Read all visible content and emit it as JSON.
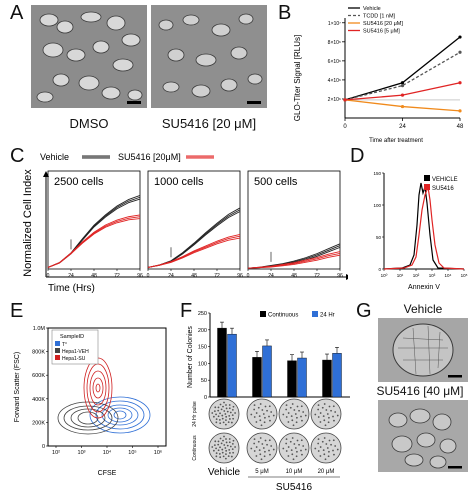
{
  "panels": {
    "A": {
      "letter": "A",
      "labels": [
        "DMSO",
        "SU5416 [20 μM]"
      ]
    },
    "B": {
      "letter": "B",
      "chart_data": {
        "type": "line",
        "ylabel": "GLO-Titer Signal [RLUs]",
        "xlabel": "Time after treatment",
        "x": [
          0,
          24,
          48
        ],
        "x_ticks": [
          "0",
          "24",
          "48"
        ],
        "y_ticks": [
          "2×10⁶",
          "4×10⁶",
          "6×10⁶",
          "8×10⁶",
          "1×10⁷"
        ],
        "y_tick_values": [
          2000000,
          4000000,
          6000000,
          8000000,
          10000000
        ],
        "ylim": [
          0,
          10500000
        ],
        "series": [
          {
            "name": "Vehicle",
            "color": "#000000",
            "dash": false,
            "values": [
              1900000,
              3700000,
              8500000
            ]
          },
          {
            "name": "TCDD [1 nM]",
            "color": "#555555",
            "dash": true,
            "values": [
              1900000,
              3400000,
              6900000
            ]
          },
          {
            "name": "SU5416 [20 μM]",
            "color": "#f08a1c",
            "dash": false,
            "values": [
              1900000,
              1200000,
              750000
            ]
          },
          {
            "name": "SU5416 [5 μM]",
            "color": "#e02424",
            "dash": false,
            "values": [
              1900000,
              2400000,
              3700000
            ]
          }
        ]
      }
    },
    "C": {
      "letter": "C",
      "legend": [
        "Vehicle",
        "SU5416 [20μM]"
      ],
      "ylabel": "Normalized Cell Index",
      "xlabel": "Time (Hrs)",
      "x_ticks": [
        "0",
        "24",
        "48",
        "72",
        "96"
      ],
      "chart_data": [
        {
          "type": "line",
          "title": "2500 cells",
          "xlim": [
            0,
            96
          ],
          "ylim": [
            0,
            1
          ],
          "x": [
            0,
            12,
            24,
            36,
            48,
            60,
            72,
            84,
            96
          ],
          "series": [
            {
              "name": "Vehicle",
              "values": [
                0.02,
                0.08,
                0.2,
                0.38,
                0.55,
                0.68,
                0.79,
                0.87,
                0.92
              ]
            },
            {
              "name": "SU5416 [20μM]",
              "values": [
                0.02,
                0.08,
                0.2,
                0.34,
                0.46,
                0.55,
                0.61,
                0.65,
                0.67
              ]
            }
          ]
        },
        {
          "type": "line",
          "title": "1000 cells",
          "xlim": [
            0,
            96
          ],
          "ylim": [
            0,
            1
          ],
          "x": [
            0,
            12,
            24,
            36,
            48,
            60,
            72,
            84,
            96
          ],
          "series": [
            {
              "name": "Vehicle",
              "values": [
                0.02,
                0.05,
                0.1,
                0.2,
                0.32,
                0.45,
                0.57,
                0.68,
                0.76
              ]
            },
            {
              "name": "SU5416 [20μM]",
              "values": [
                0.02,
                0.05,
                0.09,
                0.15,
                0.22,
                0.28,
                0.34,
                0.39,
                0.42
              ]
            }
          ]
        },
        {
          "type": "line",
          "title": "500 cells",
          "xlim": [
            0,
            96
          ],
          "ylim": [
            0,
            1
          ],
          "x": [
            0,
            12,
            24,
            36,
            48,
            60,
            72,
            84,
            96
          ],
          "series": [
            {
              "name": "Vehicle",
              "values": [
                0.01,
                0.02,
                0.04,
                0.06,
                0.09,
                0.13,
                0.18,
                0.24,
                0.3
              ]
            },
            {
              "name": "SU5416 [20μM]",
              "values": [
                0.01,
                0.02,
                0.03,
                0.05,
                0.07,
                0.1,
                0.13,
                0.17,
                0.2
              ]
            }
          ]
        }
      ]
    },
    "D": {
      "letter": "D",
      "xlabel": "Annexin V",
      "legend": [
        "VEHICLE",
        "SU5416"
      ],
      "x_ticks": [
        "10⁰",
        "10¹",
        "10²",
        "10³",
        "10⁴",
        "10⁵"
      ],
      "y_ticks": [
        "0",
        "50",
        "100",
        "150"
      ]
    },
    "E": {
      "letter": "E",
      "ylabel": "Forward Scatter (FSC)",
      "xlabel": "CFSE",
      "y_ticks": [
        "0",
        "200K",
        "400K",
        "600K",
        "800K",
        "1.0M"
      ],
      "x_ticks": [
        "10²",
        "10³",
        "10⁴",
        "10⁵",
        "10⁶"
      ],
      "legend_title": "SampleID",
      "legend": [
        "T°",
        "Hepa1-VEH",
        "Hepa1-SU"
      ]
    },
    "F": {
      "letter": "F",
      "chart_data": {
        "type": "bar",
        "ylabel": "Number of Colonies",
        "categories": [
          "Vehicle",
          "5 μM",
          "10 μM",
          "20 μM"
        ],
        "group_label": "SU5416",
        "y_ticks": [
          "0",
          "50",
          "100",
          "150",
          "200",
          "250"
        ],
        "ylim": [
          0,
          250
        ],
        "series": [
          {
            "name": "Continuous",
            "color": "#000000",
            "values": [
              205,
              118,
              108,
              110
            ]
          },
          {
            "name": "24 Hr",
            "color": "#2f6fd6",
            "values": [
              187,
              152,
              116,
              130
            ]
          }
        ]
      },
      "row_labels": [
        "24 Hr pulse",
        "Continuous"
      ]
    },
    "G": {
      "letter": "G",
      "labels": [
        "Vehicle",
        "SU5416 [40 μM]"
      ]
    }
  }
}
